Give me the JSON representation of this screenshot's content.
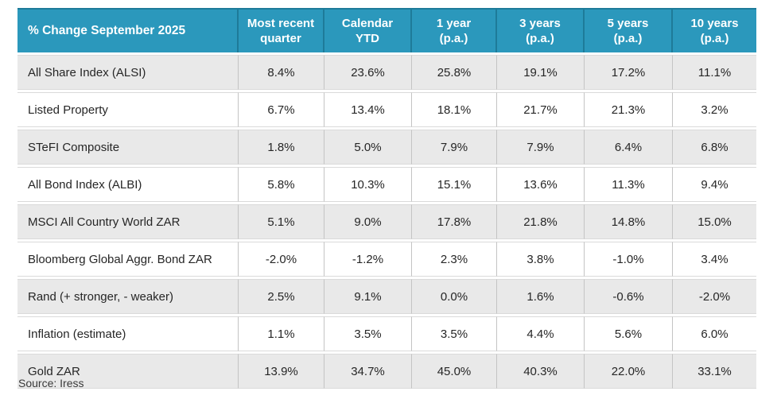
{
  "chart_data": {
    "type": "table",
    "title": "% Change September 2025",
    "columns": [
      "Most recent\nquarter",
      "Calendar\nYTD",
      "1 year\n(p.a.)",
      "3 years\n(p.a.)",
      "5 years\n(p.a.)",
      "10 years\n(p.a.)"
    ],
    "rows": [
      {
        "label": "All Share Index (ALSI)",
        "values": [
          "8.4%",
          "23.6%",
          "25.8%",
          "19.1%",
          "17.2%",
          "11.1%"
        ]
      },
      {
        "label": "Listed Property",
        "values": [
          "6.7%",
          "13.4%",
          "18.1%",
          "21.7%",
          "21.3%",
          "3.2%"
        ]
      },
      {
        "label": "STeFI Composite",
        "values": [
          "1.8%",
          "5.0%",
          "7.9%",
          "7.9%",
          "6.4%",
          "6.8%"
        ]
      },
      {
        "label": "All Bond Index (ALBI)",
        "values": [
          "5.8%",
          "10.3%",
          "15.1%",
          "13.6%",
          "11.3%",
          "9.4%"
        ]
      },
      {
        "label": "MSCI All Country World ZAR",
        "values": [
          "5.1%",
          "9.0%",
          "17.8%",
          "21.8%",
          "14.8%",
          "15.0%"
        ]
      },
      {
        "label": "Bloomberg Global Aggr. Bond ZAR",
        "values": [
          "-2.0%",
          "-1.2%",
          "2.3%",
          "3.8%",
          "-1.0%",
          "3.4%"
        ]
      },
      {
        "label": "Rand (+ stronger, - weaker)",
        "values": [
          "2.5%",
          "9.1%",
          "0.0%",
          "1.6%",
          "-0.6%",
          "-2.0%"
        ]
      },
      {
        "label": "Inflation (estimate)",
        "values": [
          "1.1%",
          "3.5%",
          "3.5%",
          "4.4%",
          "5.6%",
          "6.0%"
        ]
      },
      {
        "label": "Gold ZAR",
        "values": [
          "13.9%",
          "34.7%",
          "45.0%",
          "40.3%",
          "22.0%",
          "33.1%"
        ]
      }
    ],
    "source": "Source: Iress",
    "layout": {
      "striped": true,
      "first_stripe": "gray"
    }
  },
  "colors": {
    "header_bg": "#2B98BC",
    "header_divider": "#1E7B99",
    "header_text": "#FFFFFF",
    "row_alt_bg": "#E9E9E9",
    "row_bg": "#FFFFFF",
    "cell_divider": "#C4C4C4",
    "row_hairline": "#DADADA",
    "body_text": "#262626",
    "source_text": "#3A3A3A"
  }
}
